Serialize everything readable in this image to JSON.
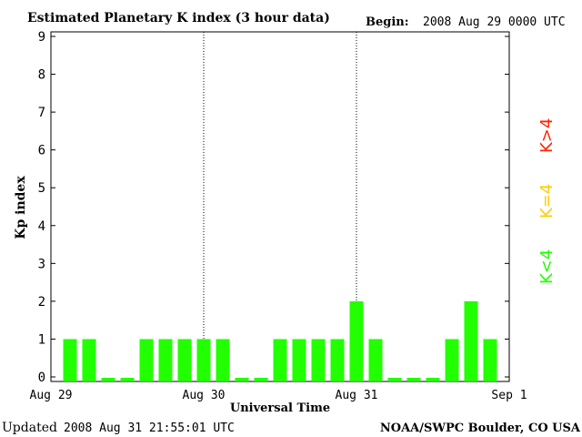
{
  "header": {
    "title": "Estimated Planetary K index (3 hour data)",
    "begin_label": "Begin:",
    "begin_value": "2008 Aug 29 0000 UTC"
  },
  "footer": {
    "updated_label": "Updated",
    "updated_value": "2008 Aug 31 21:55:01 UTC",
    "source": "NOAA/SWPC Boulder, CO USA"
  },
  "legend": {
    "items": [
      {
        "label": "K<4",
        "color": "#22ff00"
      },
      {
        "label": "K=4",
        "color": "#ffcc00"
      },
      {
        "label": "K>4",
        "color": "#ff2200"
      }
    ]
  },
  "chart_data": {
    "type": "bar",
    "title": "Estimated Planetary K index (3 hour data)",
    "xlabel": "Universal Time",
    "ylabel": "Kp index",
    "ylim": [
      0,
      9
    ],
    "yticks": [
      0,
      1,
      2,
      3,
      4,
      5,
      6,
      7,
      8,
      9
    ],
    "x_tick_labels": [
      "Aug 29",
      "Aug 30",
      "Aug 31",
      "Sep 1"
    ],
    "interval_hours": 3,
    "values": [
      1,
      1,
      0,
      0,
      1,
      1,
      1,
      1,
      1,
      0,
      0,
      1,
      1,
      1,
      1,
      2,
      1,
      0,
      0,
      0,
      1,
      2,
      1
    ],
    "day_separators": "dotted",
    "bar_color": "#22ff00"
  }
}
